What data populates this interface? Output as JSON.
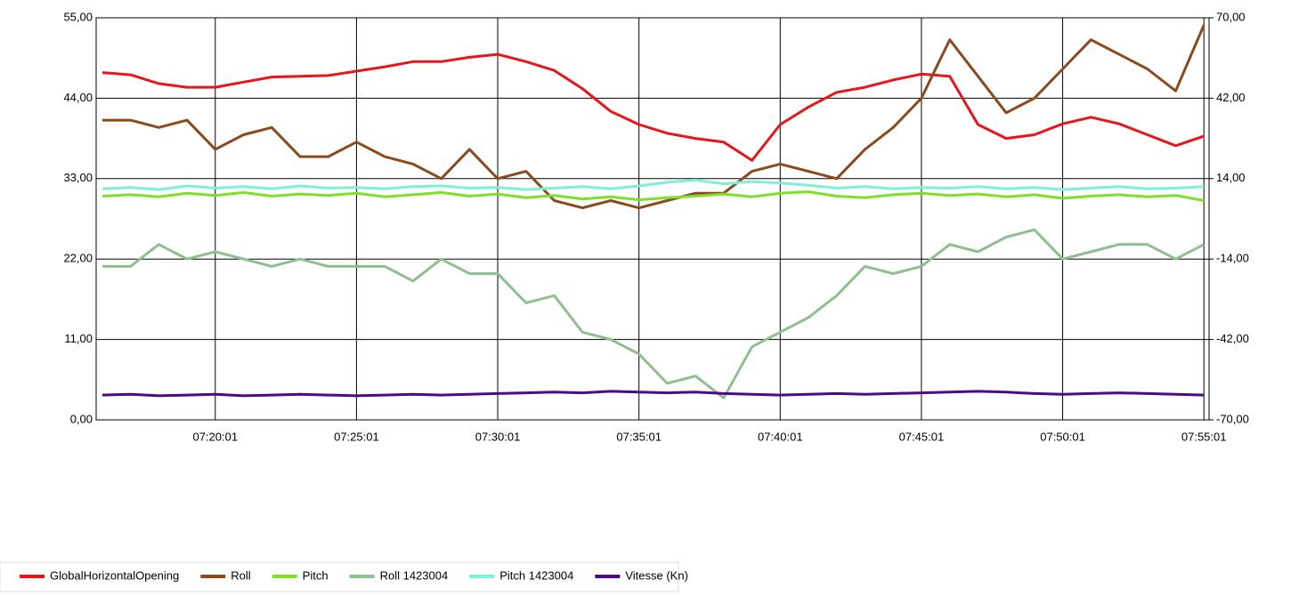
{
  "chart_data": {
    "type": "line",
    "x": [
      "07:16:01",
      "07:17:01",
      "07:18:01",
      "07:19:01",
      "07:20:01",
      "07:21:01",
      "07:22:01",
      "07:23:01",
      "07:24:01",
      "07:25:01",
      "07:26:01",
      "07:27:01",
      "07:28:01",
      "07:29:01",
      "07:30:01",
      "07:31:01",
      "07:32:01",
      "07:33:01",
      "07:34:01",
      "07:35:01",
      "07:36:01",
      "07:37:01",
      "07:38:01",
      "07:39:01",
      "07:40:01",
      "07:41:01",
      "07:42:01",
      "07:43:01",
      "07:44:01",
      "07:45:01",
      "07:46:01",
      "07:47:01",
      "07:48:01",
      "07:49:01",
      "07:50:01",
      "07:51:01",
      "07:52:01",
      "07:53:01",
      "07:54:01",
      "07:55:01"
    ],
    "series": [
      {
        "name": "GlobalHorizontalOpening",
        "color": "#e8151b",
        "values": [
          47.5,
          47.2,
          46,
          45.5,
          45.5,
          46.2,
          46.9,
          47,
          47.1,
          47.7,
          48.3,
          49,
          49,
          49.6,
          50,
          49,
          47.8,
          45.3,
          42.2,
          40.4,
          39.2,
          38.5,
          38,
          35.5,
          40.4,
          42.8,
          44.8,
          45.5,
          46.5,
          47.3,
          47,
          40.4,
          38.5,
          39,
          40.5,
          41.4,
          40.5,
          39,
          37.5,
          38.8
        ]
      },
      {
        "name": "Roll",
        "color": "#8b4a1e",
        "values": [
          41,
          41,
          40,
          41,
          37,
          39,
          40,
          36,
          36,
          38,
          36,
          35,
          33,
          37,
          33,
          34,
          30,
          29,
          30,
          29,
          30,
          31,
          31,
          34,
          35,
          34,
          33,
          37,
          40,
          44,
          52,
          47,
          42,
          44,
          48,
          52,
          50,
          48,
          45,
          54
        ]
      },
      {
        "name": "Pitch",
        "color": "#7fe02a",
        "values": [
          30.6,
          30.8,
          30.5,
          31,
          30.7,
          31.1,
          30.6,
          30.9,
          30.7,
          31,
          30.5,
          30.8,
          31.1,
          30.6,
          30.9,
          30.4,
          30.7,
          30.2,
          30.5,
          30.1,
          30.4,
          30.6,
          30.9,
          30.5,
          31,
          31.2,
          30.6,
          30.4,
          30.8,
          31,
          30.7,
          30.9,
          30.5,
          30.8,
          30.3,
          30.6,
          30.8,
          30.5,
          30.7,
          30
        ]
      },
      {
        "name": "Roll 1423004",
        "color": "#8fbf8f",
        "values": [
          21,
          21,
          24,
          22,
          23,
          22,
          21,
          22,
          21,
          21,
          21,
          19,
          22,
          20,
          20,
          16,
          17,
          12,
          11,
          9,
          5,
          6,
          3,
          10,
          12,
          14,
          17,
          21,
          20,
          21,
          24,
          23,
          25,
          26,
          22,
          23,
          24,
          24,
          22,
          24
        ]
      },
      {
        "name": "Pitch 1423004",
        "color": "#7ff0d8",
        "values": [
          31.6,
          31.8,
          31.5,
          32,
          31.7,
          31.9,
          31.6,
          32,
          31.7,
          31.8,
          31.6,
          31.9,
          32,
          31.7,
          31.8,
          31.5,
          31.7,
          31.9,
          31.6,
          32,
          32.5,
          32.8,
          32.3,
          32.6,
          32.4,
          32.1,
          31.7,
          31.9,
          31.6,
          31.8,
          31.7,
          31.9,
          31.6,
          31.8,
          31.5,
          31.7,
          31.9,
          31.6,
          31.7,
          31.9
        ]
      },
      {
        "name": "Vitesse (Kn)",
        "color": "#4b0a8a",
        "values": [
          3.4,
          3.5,
          3.3,
          3.4,
          3.5,
          3.3,
          3.4,
          3.5,
          3.4,
          3.3,
          3.4,
          3.5,
          3.4,
          3.5,
          3.6,
          3.7,
          3.8,
          3.7,
          3.9,
          3.8,
          3.7,
          3.8,
          3.6,
          3.5,
          3.4,
          3.5,
          3.6,
          3.5,
          3.6,
          3.7,
          3.8,
          3.9,
          3.8,
          3.6,
          3.5,
          3.6,
          3.7,
          3.6,
          3.5,
          3.4
        ]
      }
    ],
    "xlim": [
      "07:15:48",
      "07:55:12"
    ],
    "xticks": [
      "07:20:01",
      "07:25:01",
      "07:30:01",
      "07:35:01",
      "07:40:01",
      "07:45:01",
      "07:50:01",
      "07:55:01"
    ],
    "ylim": [
      0,
      55
    ],
    "yticks": [
      {
        "value": 0,
        "label": "0,00"
      },
      {
        "value": 11,
        "label": "11,00"
      },
      {
        "value": 22,
        "label": "22,00"
      },
      {
        "value": 33,
        "label": "33,00"
      },
      {
        "value": 44,
        "label": "44,00"
      },
      {
        "value": 55,
        "label": "55,00"
      }
    ],
    "y2lim": [
      -70,
      70
    ],
    "y2ticks": [
      {
        "value": -70,
        "label": "-70,00"
      },
      {
        "value": -42,
        "label": "-42,00"
      },
      {
        "value": -14,
        "label": "-14,00"
      },
      {
        "value": 14,
        "label": "14,00"
      },
      {
        "value": 42,
        "label": "42,00"
      },
      {
        "value": 70,
        "label": "70,00"
      }
    ],
    "grid": true,
    "legend": "bottom"
  }
}
